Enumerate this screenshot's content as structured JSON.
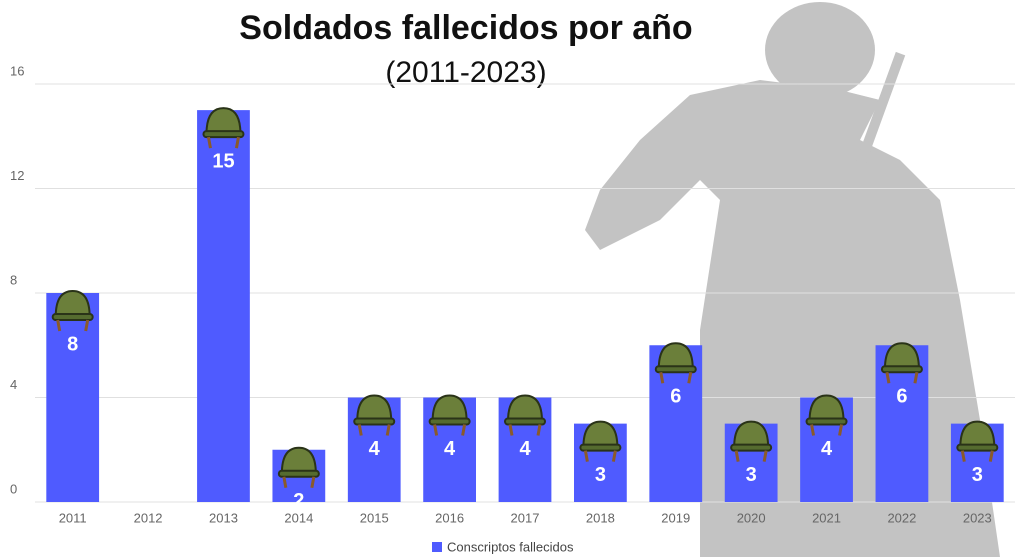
{
  "chart_data": {
    "type": "bar",
    "title": "Soldados fallecidos por año",
    "subtitle": "(2011-2023)",
    "categories": [
      "2011",
      "2012",
      "2013",
      "2014",
      "2015",
      "2016",
      "2017",
      "2018",
      "2019",
      "2020",
      "2021",
      "2022",
      "2023"
    ],
    "series": [
      {
        "name": "Conscriptos fallecidos",
        "color": "#4f5bff",
        "values": [
          8,
          null,
          15,
          2,
          4,
          4,
          4,
          3,
          6,
          3,
          4,
          6,
          3
        ]
      }
    ],
    "ylim": [
      0,
      16
    ],
    "yticks": [
      0,
      4,
      8,
      12,
      16
    ],
    "grid": true,
    "legend": "bottom"
  }
}
